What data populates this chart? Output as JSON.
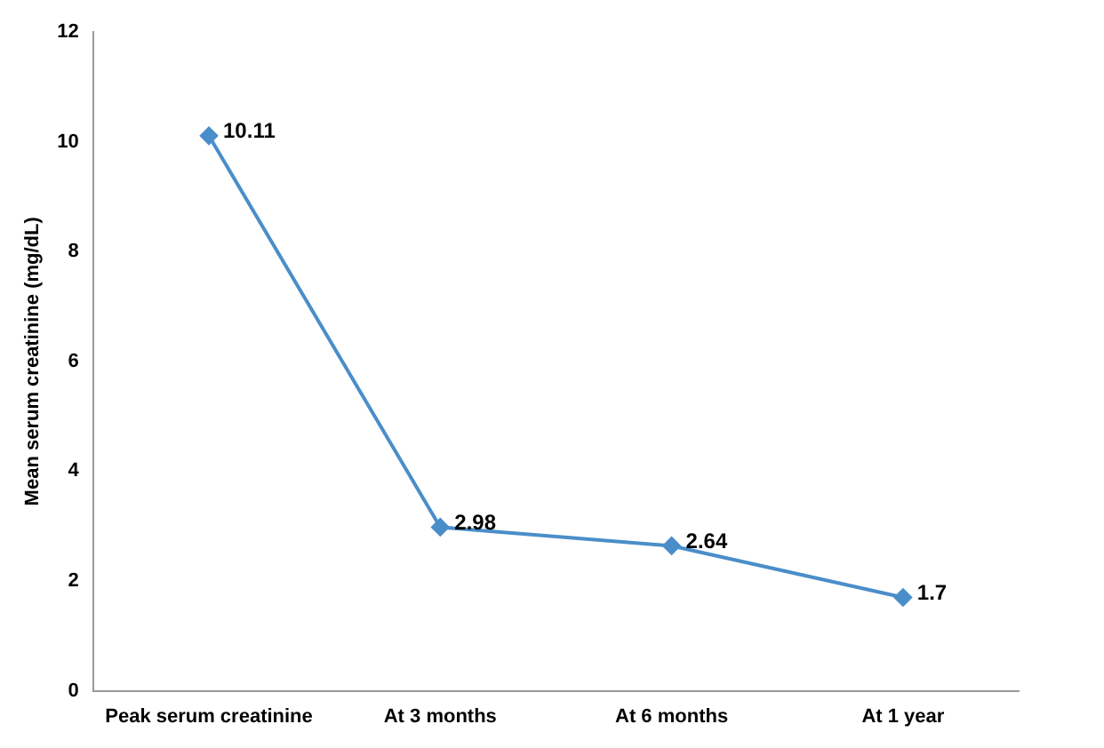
{
  "chart_data": {
    "type": "line",
    "ylabel": "Mean serum creatinine (mg/dL)",
    "categories": [
      "Peak serum creatinine",
      "At 3 months",
      "At 6 months",
      "At 1 year"
    ],
    "series": [
      {
        "color": "#4a8ec9",
        "values": [
          10.11,
          2.98,
          2.64,
          1.7
        ]
      }
    ],
    "ylim": [
      0,
      12
    ],
    "yticks": [
      0,
      2,
      4,
      6,
      8,
      10,
      12
    ],
    "grid": false,
    "legend": false,
    "marker": "diamond",
    "line_style": "solid",
    "data_labels": true
  }
}
